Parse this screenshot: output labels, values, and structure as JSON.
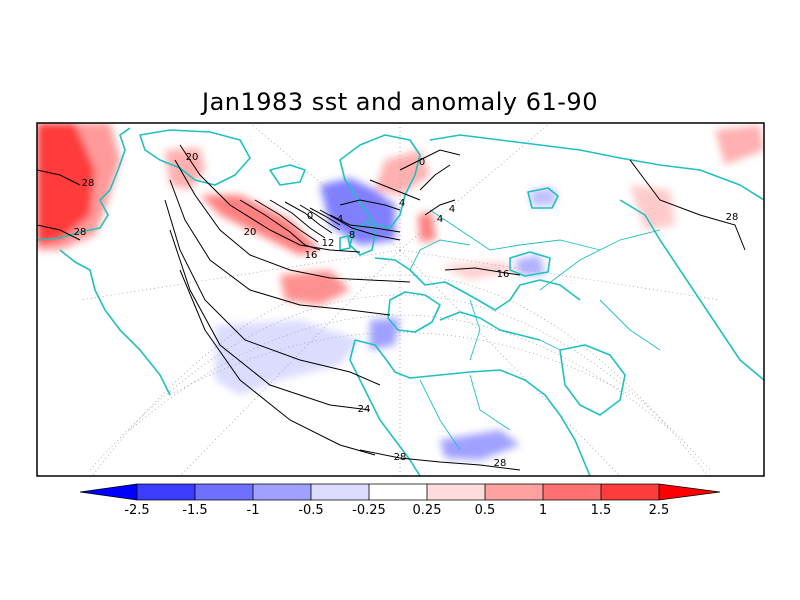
{
  "title": "Jan1983 sst and anomaly 61-90",
  "contour_labels": [
    "28",
    "28",
    "20",
    "20",
    "16",
    "12",
    "8",
    "4",
    "0",
    "0",
    "4",
    "4",
    "4",
    "16",
    "28",
    "24",
    "28",
    "28"
  ],
  "colorbar": {
    "tick_labels": [
      "-2.5",
      "-1.5",
      "-1",
      "-0.5",
      "-0.25",
      "0.25",
      "0.5",
      "1",
      "1.5",
      "2.5"
    ],
    "colors": [
      "#0000ff",
      "#3c3cff",
      "#7070ff",
      "#a0a0ff",
      "#dcdcff",
      "#ffffff",
      "#ffdcdc",
      "#ffa0a0",
      "#ff7070",
      "#ff3c3c",
      "#ff0000"
    ]
  },
  "colors": {
    "coast": "#20c0c0",
    "contour": "#000000",
    "grid": "#a0a0a0"
  }
}
